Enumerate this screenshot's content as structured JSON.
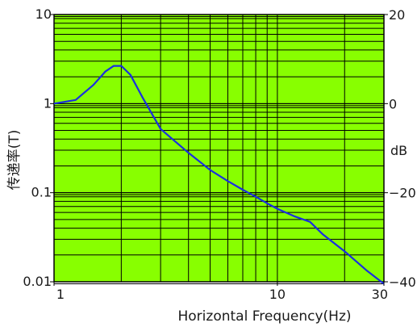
{
  "chart_data": {
    "type": "line",
    "title": "",
    "xlabel": "Horizontal Frequency(Hz)",
    "ylabel": "传递率(T)",
    "y2label": "dB",
    "x_scale": "log",
    "y_scale": "log",
    "xlim": [
      1,
      30
    ],
    "ylim": [
      0.01,
      10
    ],
    "y2lim": [
      -40,
      20
    ],
    "grid": true,
    "plot_background": "#88ff00",
    "line_color": "#1a2fe0",
    "grid_color": "#000000",
    "x_ticks": [
      {
        "value": 1,
        "label": "1"
      },
      {
        "value": 10,
        "label": "10"
      },
      {
        "value": 30,
        "label": "30"
      }
    ],
    "y_ticks": [
      {
        "value": 10,
        "label": "10"
      },
      {
        "value": 1,
        "label": "1"
      },
      {
        "value": 0.1,
        "label": "0.1"
      },
      {
        "value": 0.01,
        "label": "0.01"
      }
    ],
    "y2_ticks": [
      {
        "value": 20,
        "label": "20"
      },
      {
        "value": 0,
        "label": "0"
      },
      {
        "value": -20,
        "label": "−20"
      },
      {
        "value": -40,
        "label": "−40"
      }
    ],
    "series": [
      {
        "x": [
          1.0,
          1.25,
          1.5,
          1.7,
          1.85,
          2.0,
          2.2,
          2.5,
          3.0,
          4.0,
          5.0,
          6.0,
          7.0,
          8.0,
          9.0,
          10.0,
          12.0,
          14.0,
          16.0,
          20.0,
          25.0,
          30.0
        ],
        "values": [
          1.0,
          1.1,
          1.62,
          2.3,
          2.65,
          2.65,
          2.1,
          1.15,
          0.52,
          0.28,
          0.18,
          0.135,
          0.108,
          0.09,
          0.076,
          0.066,
          0.054,
          0.047,
          0.034,
          0.022,
          0.0135,
          0.0095
        ]
      }
    ]
  }
}
